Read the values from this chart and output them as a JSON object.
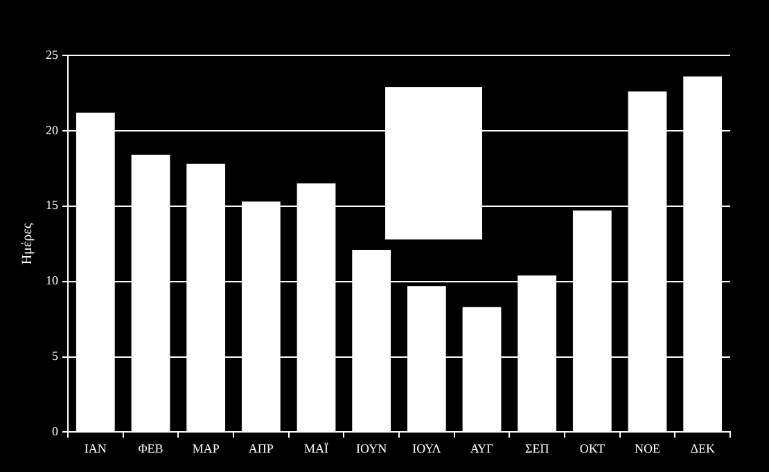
{
  "chart_data": {
    "type": "bar",
    "ylabel": "Ημέρες",
    "categories": [
      "ΙΑΝ",
      "ΦΕΒ",
      "ΜΑΡ",
      "ΑΠΡ",
      "ΜΑΪ",
      "ΙΟΥΝ",
      "ΙΟΥΛ",
      "ΑΥΓ",
      "ΣΕΠ",
      "ΟΚΤ",
      "ΝΟΕ",
      "ΔΕΚ"
    ],
    "values": [
      21.2,
      18.4,
      17.8,
      15.3,
      16.5,
      12.1,
      9.7,
      8.3,
      10.4,
      14.7,
      22.6,
      23.6
    ],
    "color": "#ffffff",
    "ylim": [
      0,
      25
    ],
    "yticks": [
      0,
      5,
      10,
      15,
      20,
      25
    ],
    "grid": "y",
    "legend": false
  }
}
